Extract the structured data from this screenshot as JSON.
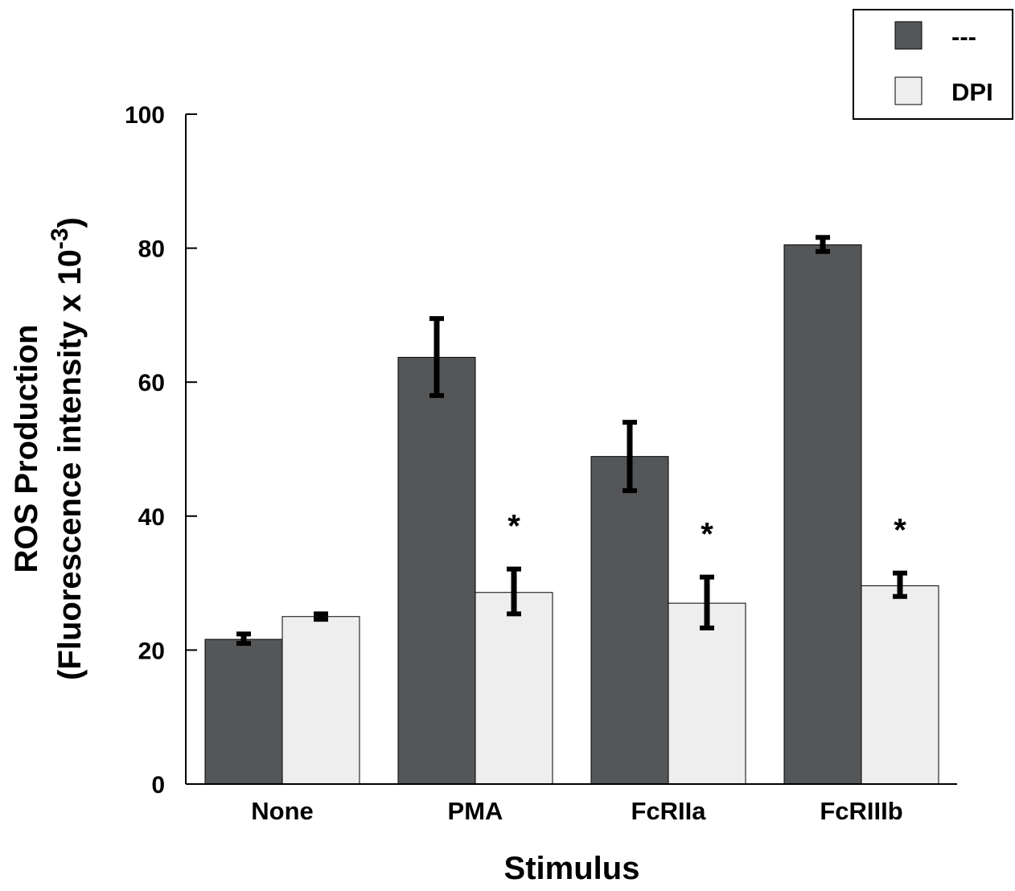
{
  "chart_data": {
    "type": "bar",
    "xlabel": "Stimulus",
    "ylabel_line1": "ROS Production",
    "ylabel_line2_prefix": "(Fluorescence intensity x 10",
    "ylabel_line2_exp": "-3",
    "ylabel_line2_suffix": ")",
    "ylim": [
      0,
      100
    ],
    "yticks": [
      0,
      20,
      40,
      60,
      80,
      100
    ],
    "categories": [
      "None",
      "PMA",
      "FcRIIa",
      "FcRIIIb"
    ],
    "series": [
      {
        "name": "---",
        "color": "#555658",
        "values": [
          21.6,
          63.7,
          48.9,
          80.5
        ],
        "error_low": [
          21.0,
          58.0,
          43.8,
          79.5
        ],
        "error_high": [
          22.4,
          69.5,
          54.0,
          81.6
        ]
      },
      {
        "name": "DPI",
        "color": "#eeeeee",
        "values": [
          25.0,
          28.6,
          27.0,
          29.6
        ],
        "error_low": [
          24.6,
          25.4,
          23.3,
          28.0
        ],
        "error_high": [
          25.4,
          32.1,
          30.9,
          31.5
        ]
      }
    ],
    "annotations": [
      "",
      "*",
      "*",
      "*"
    ],
    "grid": false,
    "legend_position": "top-right"
  }
}
